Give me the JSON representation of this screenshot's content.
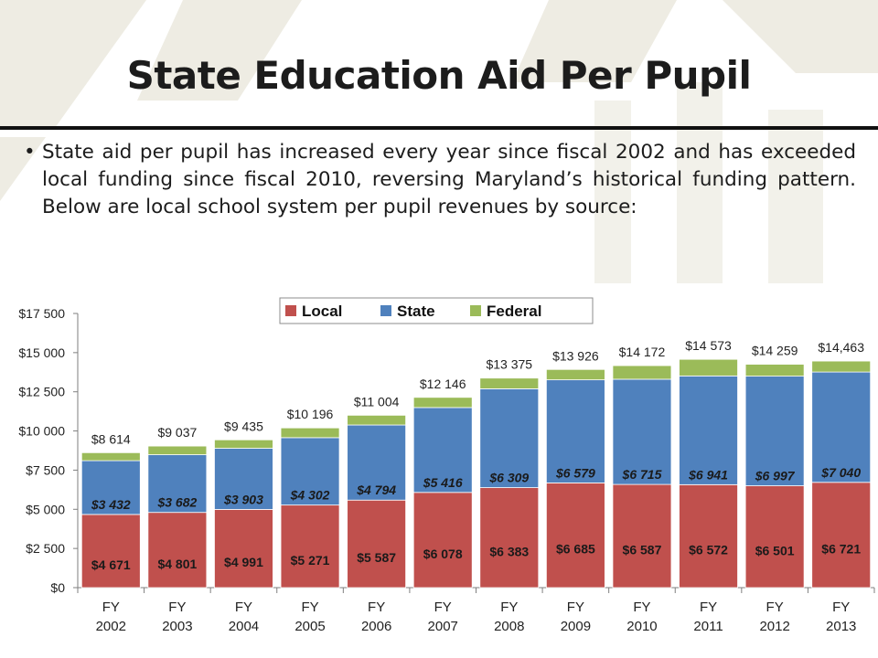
{
  "slide": {
    "title": "State Education Aid Per Pupil",
    "bullet": "State aid per pupil has increased every year since fiscal 2002 and has exceeded local funding since fiscal 2010, reversing Maryland’s historical funding pattern.  Below are local school system per pupil revenues by source:"
  },
  "chart_data": {
    "type": "bar",
    "stacked": true,
    "categories": [
      "FY 2002",
      "FY 2003",
      "FY 2004",
      "FY 2005",
      "FY 2006",
      "FY 2007",
      "FY 2008",
      "FY 2009",
      "FY 2010",
      "FY 2011",
      "FY 2012",
      "FY 2013"
    ],
    "series": [
      {
        "name": "Local",
        "color": "#c0504d",
        "values": [
          4671,
          4801,
          4991,
          5271,
          5587,
          6078,
          6383,
          6685,
          6587,
          6572,
          6501,
          6721
        ],
        "labels": [
          "$4 671",
          "$4 801",
          "$4 991",
          "$5 271",
          "$5 587",
          "$6 078",
          "$6 383",
          "$6 685",
          "$6 587",
          "$6 572",
          "$6 501",
          "$6 721"
        ]
      },
      {
        "name": "State",
        "color": "#4f81bd",
        "values": [
          3432,
          3682,
          3903,
          4302,
          4794,
          5416,
          6309,
          6579,
          6715,
          6941,
          6997,
          7040
        ],
        "labels": [
          "$3 432",
          "$3 682",
          "$3 903",
          "$4 302",
          "$4 794",
          "$5 416",
          "$6 309",
          "$6 579",
          "$6 715",
          "$6 941",
          "$6 997",
          "$7 040"
        ]
      },
      {
        "name": "Federal",
        "color": "#9bbb59",
        "values": [
          511,
          554,
          541,
          623,
          623,
          652,
          683,
          662,
          870,
          1060,
          761,
          702
        ]
      }
    ],
    "totals": [
      8614,
      9037,
      9435,
      10196,
      11004,
      12146,
      13375,
      13926,
      14172,
      14573,
      14259,
      14463
    ],
    "total_labels": [
      "$8 614",
      "$9 037",
      "$9 435",
      "$10 196",
      "$11 004",
      "$12 146",
      "$13 375",
      "$13 926",
      "$14 172",
      "$14 573",
      "$14 259",
      "$14,463"
    ],
    "ylim": [
      0,
      17500
    ],
    "yticks": [
      0,
      2500,
      5000,
      7500,
      10000,
      12500,
      15000,
      17500
    ],
    "ytick_labels": [
      "$0",
      "$2 500",
      "$5 000",
      "$7 500",
      "$10 000",
      "$12 500",
      "$15 000",
      "$17 500"
    ],
    "legend": {
      "placement": "top",
      "entries": [
        "Local",
        "State",
        "Federal"
      ]
    },
    "grid": false
  }
}
